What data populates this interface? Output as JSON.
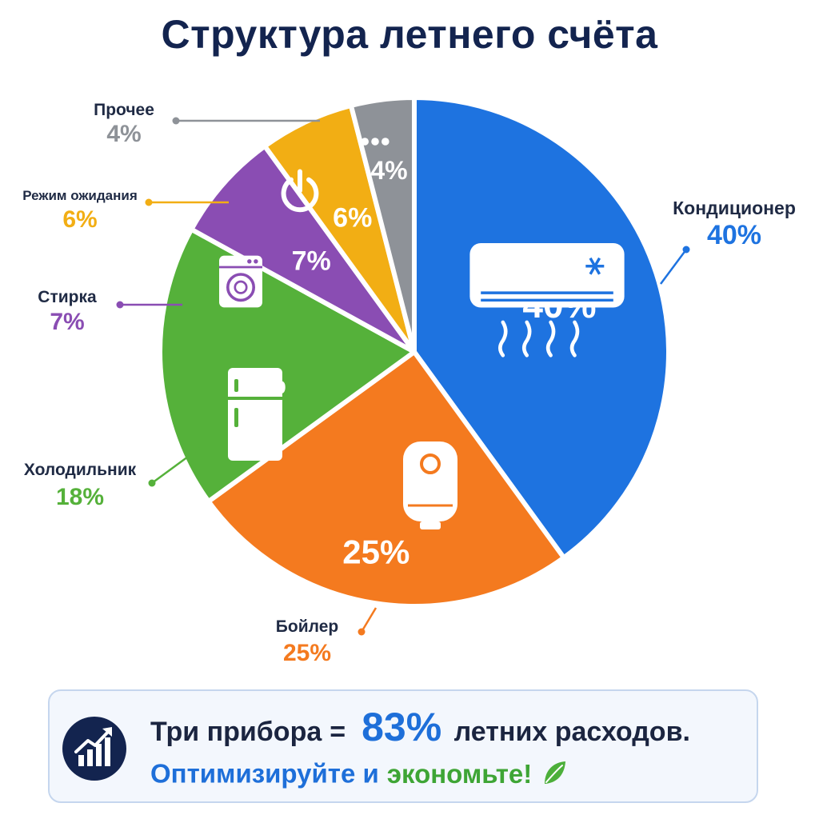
{
  "title": "Структура летнего счёта",
  "chart_data": {
    "type": "pie",
    "title": "Структура летнего счёта",
    "unit": "%",
    "slices": [
      {
        "name": "Кондиционер",
        "value": 40,
        "label": "40%",
        "color": "#1e73e0",
        "icon": "air-conditioner-icon"
      },
      {
        "name": "Бойлер",
        "value": 25,
        "label": "25%",
        "color": "#f47a1f",
        "icon": "water-heater-icon"
      },
      {
        "name": "Холодильник",
        "value": 18,
        "label": "18%",
        "color": "#55b13a",
        "icon": "refrigerator-icon"
      },
      {
        "name": "Стирка",
        "value": 7,
        "label": "7%",
        "color": "#8a4db3",
        "icon": "washing-machine-icon"
      },
      {
        "name": "Режим ожидания",
        "value": 6,
        "label": "6%",
        "color": "#f2ae14",
        "icon": "power-icon"
      },
      {
        "name": "Прочее",
        "value": 4,
        "label": "4%",
        "color": "#8e9298",
        "icon": "more-dots-icon"
      }
    ]
  },
  "summary": {
    "prefix": "Три прибора",
    "equals": "=",
    "value": "83%",
    "suffix": "летних расходов.",
    "call_optimize": "Оптимизируйте и",
    "call_save": "экономьте!",
    "icon": "growth-chart-icon",
    "leaf_icon": "leaf-icon"
  }
}
